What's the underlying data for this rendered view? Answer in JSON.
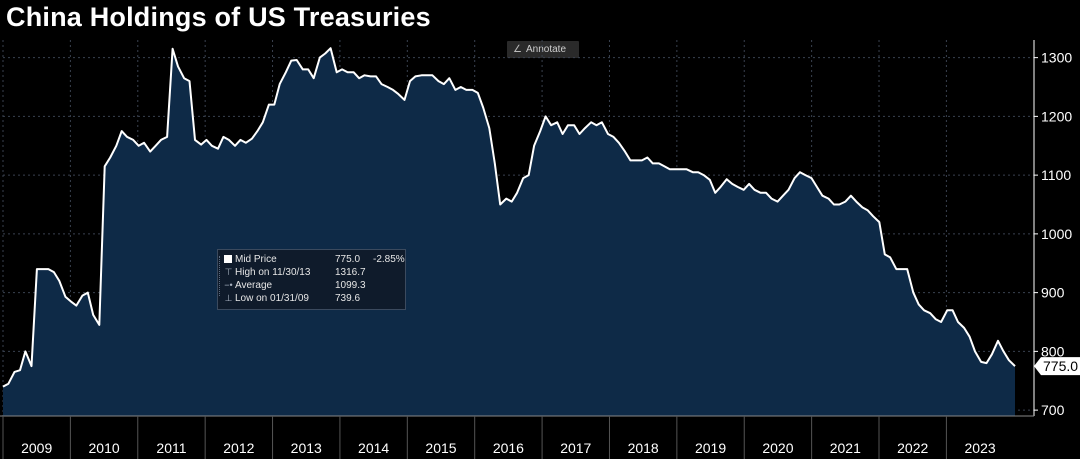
{
  "chart_data": {
    "type": "area",
    "title": "China Holdings of US Treasuries",
    "x_ticks": [
      "2009",
      "2010",
      "2011",
      "2012",
      "2013",
      "2014",
      "2015",
      "2016",
      "2017",
      "2018",
      "2019",
      "2020",
      "2021",
      "2022",
      "2023"
    ],
    "y_ticks": [
      "700",
      "800",
      "900",
      "1000",
      "1100",
      "1200",
      "1300"
    ],
    "ylim": [
      690,
      1330
    ],
    "xlim": [
      2009.0,
      2024.3
    ],
    "last_value_label": "775.0",
    "colors": {
      "background": "#000000",
      "fill": "#0e2a47",
      "line": "#ffffff",
      "grid": "#3a4250",
      "axis_text": "#ffffff"
    },
    "series": [
      {
        "x": [
          2009.0,
          2009.08,
          2009.17,
          2009.25,
          2009.33,
          2009.42,
          2009.5,
          2009.58,
          2009.67,
          2009.75,
          2009.83,
          2009.92,
          2010.0,
          2010.08,
          2010.17,
          2010.25,
          2010.33,
          2010.42,
          2010.5,
          2010.58,
          2010.67,
          2010.75,
          2010.83,
          2010.92,
          2011.0,
          2011.08,
          2011.17,
          2011.25,
          2011.33,
          2011.42,
          2011.5,
          2011.58,
          2011.67,
          2011.75,
          2011.83,
          2011.92,
          2012.0,
          2012.08,
          2012.17,
          2012.25,
          2012.33,
          2012.42,
          2012.5,
          2012.58,
          2012.67,
          2012.75,
          2012.83,
          2012.92,
          2013.0,
          2013.08,
          2013.17,
          2013.25,
          2013.33,
          2013.42,
          2013.5,
          2013.58,
          2013.67,
          2013.75,
          2013.83,
          2013.92,
          2014.0,
          2014.08,
          2014.17,
          2014.25,
          2014.33,
          2014.42,
          2014.5,
          2014.58,
          2014.67,
          2014.75,
          2014.83,
          2014.92,
          2015.0,
          2015.08,
          2015.17,
          2015.25,
          2015.33,
          2015.42,
          2015.5,
          2015.58,
          2015.67,
          2015.75,
          2015.83,
          2015.92,
          2016.0,
          2016.08,
          2016.17,
          2016.25,
          2016.33,
          2016.42,
          2016.5,
          2016.58,
          2016.67,
          2016.75,
          2016.83,
          2016.92,
          2017.0,
          2017.08,
          2017.17,
          2017.25,
          2017.33,
          2017.42,
          2017.5,
          2017.58,
          2017.67,
          2017.75,
          2017.83,
          2017.92,
          2018.0,
          2018.08,
          2018.17,
          2018.25,
          2018.33,
          2018.42,
          2018.5,
          2018.58,
          2018.67,
          2018.75,
          2018.83,
          2018.92,
          2019.0,
          2019.08,
          2019.17,
          2019.25,
          2019.33,
          2019.42,
          2019.5,
          2019.58,
          2019.67,
          2019.75,
          2019.83,
          2019.92,
          2020.0,
          2020.08,
          2020.17,
          2020.25,
          2020.33,
          2020.42,
          2020.5,
          2020.58,
          2020.67,
          2020.75,
          2020.83,
          2020.92,
          2021.0,
          2021.08,
          2021.17,
          2021.25,
          2021.33,
          2021.42,
          2021.5,
          2021.58,
          2021.67,
          2021.75,
          2021.83,
          2021.92,
          2022.0,
          2022.08,
          2022.17,
          2022.25,
          2022.33,
          2022.42,
          2022.5,
          2022.58,
          2022.67,
          2022.75,
          2022.83,
          2022.92,
          2023.0,
          2023.08,
          2023.17,
          2023.25,
          2023.33,
          2023.42,
          2023.5,
          2023.58,
          2023.67,
          2023.75,
          2023.83,
          2023.92
        ],
        "y": [
          740,
          745,
          765,
          768,
          800,
          775,
          940,
          940,
          940,
          935,
          920,
          893,
          885,
          878,
          895,
          900,
          862,
          845,
          1115,
          1130,
          1150,
          1175,
          1165,
          1160,
          1150,
          1155,
          1140,
          1150,
          1160,
          1165,
          1315,
          1285,
          1265,
          1260,
          1160,
          1152,
          1160,
          1150,
          1145,
          1165,
          1160,
          1150,
          1160,
          1155,
          1162,
          1175,
          1190,
          1220,
          1220,
          1255,
          1275,
          1295,
          1296,
          1280,
          1280,
          1265,
          1300,
          1307,
          1316,
          1275,
          1280,
          1275,
          1275,
          1265,
          1270,
          1268,
          1268,
          1255,
          1250,
          1245,
          1238,
          1228,
          1260,
          1268,
          1270,
          1270,
          1270,
          1260,
          1255,
          1265,
          1245,
          1250,
          1245,
          1245,
          1240,
          1215,
          1180,
          1120,
          1050,
          1060,
          1055,
          1070,
          1095,
          1100,
          1150,
          1175,
          1200,
          1185,
          1190,
          1170,
          1185,
          1185,
          1170,
          1180,
          1190,
          1185,
          1190,
          1170,
          1165,
          1155,
          1140,
          1125,
          1125,
          1125,
          1130,
          1120,
          1120,
          1115,
          1110,
          1110,
          1110,
          1110,
          1105,
          1105,
          1100,
          1092,
          1070,
          1080,
          1093,
          1085,
          1080,
          1075,
          1085,
          1075,
          1070,
          1070,
          1060,
          1055,
          1065,
          1075,
          1095,
          1105,
          1100,
          1095,
          1080,
          1065,
          1060,
          1050,
          1050,
          1055,
          1065,
          1055,
          1045,
          1040,
          1030,
          1020,
          965,
          960,
          940,
          940,
          940,
          900,
          880,
          870,
          865,
          855,
          850,
          870,
          870,
          850,
          840,
          825,
          800,
          782,
          780,
          795,
          818,
          800,
          785,
          775
        ]
      }
    ],
    "legend": {
      "mid_price_label": "Mid Price",
      "mid_price_value": "775.0",
      "mid_price_change": "-2.85%",
      "high_label": "High on 11/30/13",
      "high_value": "1316.7",
      "average_label": "Average",
      "average_value": "1099.3",
      "low_label": "Low on 01/31/09",
      "low_value": "739.6"
    }
  },
  "toolbar": {
    "annotate_label": "Annotate",
    "annotate_icon": "pencil-icon"
  }
}
